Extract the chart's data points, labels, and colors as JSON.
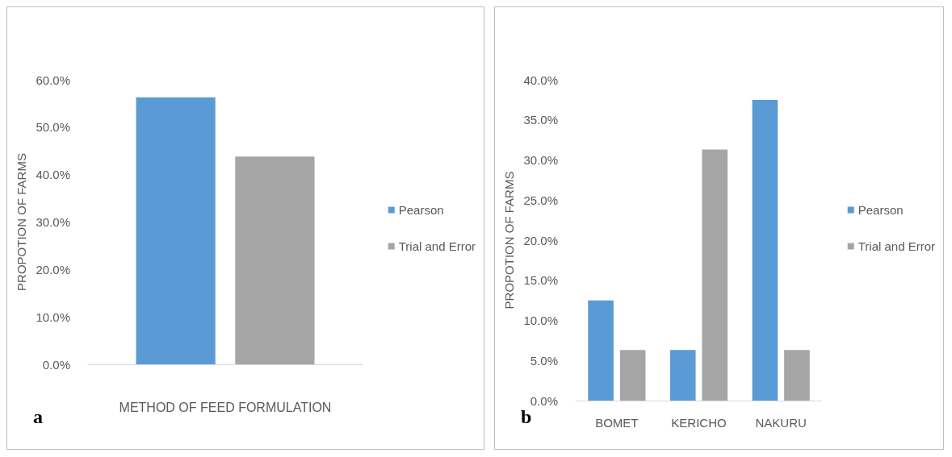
{
  "chart_data": [
    {
      "type": "bar",
      "categories": [
        null
      ],
      "xlabel": "METHOD OF FEED FORMULATION",
      "ylabel": "PROPOTION OF FARMS",
      "annotations": [
        "a"
      ],
      "series": [
        {
          "name": "Pearson",
          "color": "#5b9bd5",
          "values": [
            56.3
          ]
        },
        {
          "name": "Trial and Error",
          "color": "#a5a5a5",
          "values": [
            43.8
          ]
        }
      ],
      "ylim": [
        0,
        60
      ],
      "yticks": [
        {
          "value": 0,
          "label": "0.0%"
        },
        {
          "value": 10,
          "label": "10.0%"
        },
        {
          "value": 20,
          "label": "20.0%"
        },
        {
          "value": 30,
          "label": "30.0%"
        },
        {
          "value": 40,
          "label": "40.0%"
        },
        {
          "value": 50,
          "label": "50.0%"
        },
        {
          "value": 60,
          "label": "60.0%"
        }
      ],
      "grid": false,
      "legend": "right"
    },
    {
      "type": "bar",
      "categories": [
        "BOMET",
        "KERICHO",
        "NAKURU"
      ],
      "ylabel": "PROPOTION OF FARMS",
      "annotations": [
        "b"
      ],
      "series": [
        {
          "name": "Pearson",
          "color": "#5b9bd5",
          "values": [
            12.5,
            6.3,
            37.5
          ]
        },
        {
          "name": "Trial and Error",
          "color": "#a5a5a5",
          "values": [
            6.3,
            31.3,
            6.3
          ]
        }
      ],
      "ylim": [
        0,
        40
      ],
      "yticks": [
        {
          "value": 0,
          "label": "0.0%"
        },
        {
          "value": 5,
          "label": "5.0%"
        },
        {
          "value": 10,
          "label": "10.0%"
        },
        {
          "value": 15,
          "label": "15.0%"
        },
        {
          "value": 20,
          "label": "20.0%"
        },
        {
          "value": 25,
          "label": "25.0%"
        },
        {
          "value": 30,
          "label": "30.0%"
        },
        {
          "value": 35,
          "label": "35.0%"
        },
        {
          "value": 40,
          "label": "40.0%"
        }
      ],
      "grid": false,
      "legend": "right"
    }
  ]
}
